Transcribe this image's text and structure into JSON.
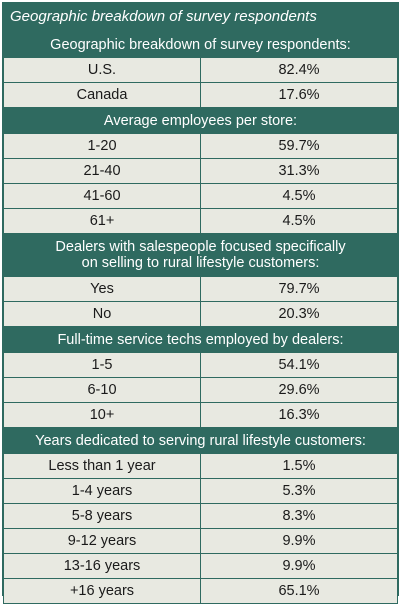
{
  "title": "Geographic breakdown of survey respondents",
  "sections": [
    {
      "heading": [
        "Geographic breakdown of survey respondents:"
      ],
      "rows": [
        {
          "label": "U.S.",
          "value": "82.4%"
        },
        {
          "label": "Canada",
          "value": "17.6%"
        }
      ]
    },
    {
      "heading": [
        "Average employees per store:"
      ],
      "rows": [
        {
          "label": "1-20",
          "value": "59.7%"
        },
        {
          "label": "21-40",
          "value": "31.3%"
        },
        {
          "label": "41-60",
          "value": "4.5%"
        },
        {
          "label": "61+",
          "value": "4.5%"
        }
      ]
    },
    {
      "heading": [
        "Dealers with salespeople focused specifically",
        "on selling to rural lifestyle customers:"
      ],
      "rows": [
        {
          "label": "Yes",
          "value": "79.7%"
        },
        {
          "label": "No",
          "value": "20.3%"
        }
      ]
    },
    {
      "heading": [
        "Full-time service techs employed by dealers:"
      ],
      "rows": [
        {
          "label": "1-5",
          "value": "54.1%"
        },
        {
          "label": "6-10",
          "value": "29.6%"
        },
        {
          "label": "10+",
          "value": "16.3%"
        }
      ]
    },
    {
      "heading": [
        "Years dedicated to serving rural lifestyle customers:"
      ],
      "rows": [
        {
          "label": "Less than 1 year",
          "value": "1.5%"
        },
        {
          "label": "1-4 years",
          "value": "5.3%"
        },
        {
          "label": "5-8 years",
          "value": "8.3%"
        },
        {
          "label": "9-12 years",
          "value": "9.9%"
        },
        {
          "label": "13-16 years",
          "value": "9.9%"
        },
        {
          "label": "+16 years",
          "value": "65.1%"
        }
      ]
    }
  ]
}
